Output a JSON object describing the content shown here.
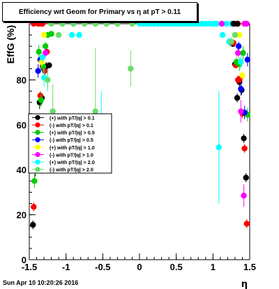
{
  "title": "Efficiency wrt Geom for Primary vs   η at pT > 0.11",
  "timestamp": "Sun Apr 10 10:20:26 2016",
  "colors": {
    "frame": "#000000",
    "background": "#ffffff"
  },
  "chart_data": {
    "type": "scatter",
    "title": "Efficiency wrt Geom for Primary vs   η at pT > 0.11",
    "xlabel": "η",
    "ylabel": "EffG (%)",
    "xlim": [
      -1.5,
      1.5
    ],
    "ylim": [
      0,
      105
    ],
    "x_ticks": [
      "-1.5",
      "-1",
      "-0.5",
      "0",
      "0.5",
      "1",
      "1.5"
    ],
    "y_ticks": [
      "0",
      "20",
      "40",
      "60",
      "80"
    ],
    "grid": false,
    "legend_position": "left-center",
    "series": [
      {
        "name": "(+) with pT/|q| > 0.1",
        "color": "#000000",
        "points": [
          [
            -1.45,
            15.5
          ],
          [
            -1.42,
            40
          ],
          [
            -1.39,
            56
          ],
          [
            -1.36,
            70
          ],
          [
            -1.33,
            72
          ],
          [
            -1.3,
            85
          ],
          [
            -1.27,
            86
          ],
          [
            -1.23,
            86.5
          ],
          [
            1.27,
            96
          ],
          [
            1.3,
            87
          ],
          [
            1.33,
            72
          ],
          [
            1.36,
            79
          ],
          [
            1.39,
            75.5
          ],
          [
            1.42,
            54
          ],
          [
            1.45,
            36.5
          ]
        ],
        "errors": [
          [
            -1.45,
            2
          ],
          [
            -1.42,
            3
          ],
          [
            -1.39,
            2
          ],
          [
            -1.36,
            3
          ],
          [
            -1.33,
            2
          ],
          [
            -1.3,
            2
          ],
          [
            -1.27,
            2
          ],
          [
            -1.23,
            1
          ],
          [
            1.27,
            1
          ],
          [
            1.3,
            1
          ],
          [
            1.33,
            2
          ],
          [
            1.36,
            2
          ],
          [
            1.39,
            2
          ],
          [
            1.42,
            2
          ],
          [
            1.45,
            2
          ]
        ]
      },
      {
        "name": "(-) with pT/|q| > 0.1",
        "color": "#ff0000",
        "points": [
          [
            -1.44,
            23.5
          ],
          [
            -1.41,
            59
          ],
          [
            -1.38,
            60
          ],
          [
            -1.35,
            73
          ],
          [
            -1.32,
            86
          ],
          [
            -1.29,
            84
          ],
          [
            -1.26,
            92.5
          ],
          [
            1.28,
            96.5
          ],
          [
            1.31,
            86.5
          ],
          [
            1.34,
            80
          ],
          [
            1.37,
            80.5
          ],
          [
            1.4,
            65
          ],
          [
            1.43,
            49.5
          ],
          [
            1.46,
            16
          ]
        ],
        "errors": [
          [
            -1.44,
            2
          ],
          [
            -1.41,
            2
          ],
          [
            -1.38,
            2
          ],
          [
            -1.35,
            2
          ],
          [
            -1.32,
            2
          ],
          [
            -1.29,
            2
          ],
          [
            -1.26,
            1
          ],
          [
            1.28,
            1
          ],
          [
            1.31,
            1
          ],
          [
            1.34,
            2
          ],
          [
            1.37,
            2
          ],
          [
            1.4,
            2
          ],
          [
            1.43,
            2
          ],
          [
            1.46,
            2
          ]
        ]
      },
      {
        "name": "(+) with pT/|q| > 0.5",
        "color": "#00cc00",
        "points": [
          [
            -1.43,
            35
          ],
          [
            -1.4,
            55
          ],
          [
            -1.37,
            92.5
          ],
          [
            -1.34,
            71
          ],
          [
            -1.31,
            86
          ],
          [
            -1.28,
            95
          ],
          [
            -1.25,
            100
          ],
          [
            -1.2,
            100.5
          ],
          [
            1.32,
            88
          ],
          [
            1.36,
            87
          ],
          [
            1.41,
            92
          ],
          [
            1.47,
            64.5
          ]
        ],
        "errors": [
          [
            -1.43,
            3
          ],
          [
            -1.4,
            3
          ],
          [
            -1.37,
            3
          ],
          [
            -1.34,
            3
          ],
          [
            -1.31,
            3
          ],
          [
            -1.28,
            2
          ],
          [
            -1.25,
            1
          ],
          [
            -1.2,
            1
          ],
          [
            1.32,
            2
          ],
          [
            1.36,
            3
          ],
          [
            1.41,
            3
          ],
          [
            1.47,
            3
          ]
        ]
      },
      {
        "name": "(-) with pT/|q| > 0.5",
        "color": "#0000ff",
        "points": [
          [
            -1.46,
            50
          ],
          [
            -1.38,
            84
          ],
          [
            -1.35,
            89
          ],
          [
            1.35,
            95
          ],
          [
            1.38,
            76
          ],
          [
            1.43,
            65.5
          ],
          [
            1.47,
            89
          ]
        ],
        "errors": [
          [
            -1.46,
            3
          ],
          [
            -1.38,
            3
          ],
          [
            -1.35,
            2
          ],
          [
            1.35,
            2
          ],
          [
            1.38,
            3
          ],
          [
            1.43,
            3
          ],
          [
            1.47,
            3
          ]
        ]
      },
      {
        "name": "(+) with pT/|q| > 1.0",
        "color": "#ffff00",
        "points": [
          [
            -1.33,
            88
          ],
          [
            -1.3,
            100
          ],
          [
            1.36,
            100
          ],
          [
            1.4,
            82
          ]
        ],
        "errors": [
          [
            -1.33,
            2
          ],
          [
            -1.3,
            1
          ],
          [
            1.36,
            1
          ],
          [
            1.4,
            2
          ]
        ]
      },
      {
        "name": "(-) with pT/|q| > 1.0",
        "color": "#ff00ff",
        "points": [
          [
            -1.28,
            92
          ],
          [
            1.34,
            92
          ],
          [
            1.38,
            66
          ],
          [
            1.42,
            28.5
          ]
        ],
        "errors": [
          [
            -1.28,
            2
          ],
          [
            1.34,
            2
          ],
          [
            1.38,
            5
          ],
          [
            1.42,
            5
          ]
        ]
      },
      {
        "name": "(+) with pT/|q| > 2.0",
        "color": "#00ffff",
        "points": [
          [
            -1.32,
            90
          ],
          [
            -1.3,
            81
          ],
          [
            -1.25,
            80
          ],
          [
            -0.92,
            100
          ],
          [
            -0.82,
            100
          ],
          [
            -0.52,
            57
          ],
          [
            1.08,
            50
          ],
          [
            1.13,
            100
          ],
          [
            1.22,
            97
          ],
          [
            1.38,
            88
          ]
        ],
        "errors": [
          [
            -1.32,
            2
          ],
          [
            -1.3,
            4
          ],
          [
            -1.25,
            5
          ],
          [
            -0.92,
            1
          ],
          [
            -0.82,
            1
          ],
          [
            -0.52,
            18
          ],
          [
            1.08,
            25
          ],
          [
            1.13,
            1
          ],
          [
            1.22,
            2
          ],
          [
            1.38,
            3
          ]
        ]
      },
      {
        "name": "(-) with pT/|q| > 2.0",
        "color": "#66dd66",
        "points": [
          [
            -1.25,
            80
          ],
          [
            -1.18,
            66
          ],
          [
            -1.1,
            100
          ],
          [
            -0.6,
            66
          ],
          [
            -0.12,
            85
          ],
          [
            1.25,
            97
          ],
          [
            1.3,
            100
          ]
        ],
        "errors": [
          [
            -1.25,
            4
          ],
          [
            -1.18,
            12
          ],
          [
            -1.1,
            1
          ],
          [
            -0.6,
            28
          ],
          [
            -0.12,
            8
          ],
          [
            1.25,
            2
          ],
          [
            1.3,
            1
          ]
        ]
      }
    ],
    "overflow_row": {
      "y": 105,
      "black_x": [
        1.28,
        1.33
      ],
      "red_x": [
        -1.44,
        -1.38,
        -1.35,
        -1.32,
        1.29,
        1.34
      ],
      "magenta_x": [
        1.12,
        1.43,
        1.46
      ],
      "green_x": [
        -1.2,
        -1.05,
        -0.9,
        -0.75,
        -0.6,
        -0.45,
        -0.3,
        -0.1
      ],
      "cyan_x": [
        0.0,
        0.05,
        0.1,
        0.15,
        0.2,
        0.25,
        0.3,
        0.35,
        0.4,
        0.45,
        0.5,
        0.55,
        0.6,
        0.65,
        0.7,
        0.75,
        0.8,
        0.85,
        0.9,
        0.95,
        1.0,
        1.05,
        1.18,
        1.25
      ]
    }
  }
}
